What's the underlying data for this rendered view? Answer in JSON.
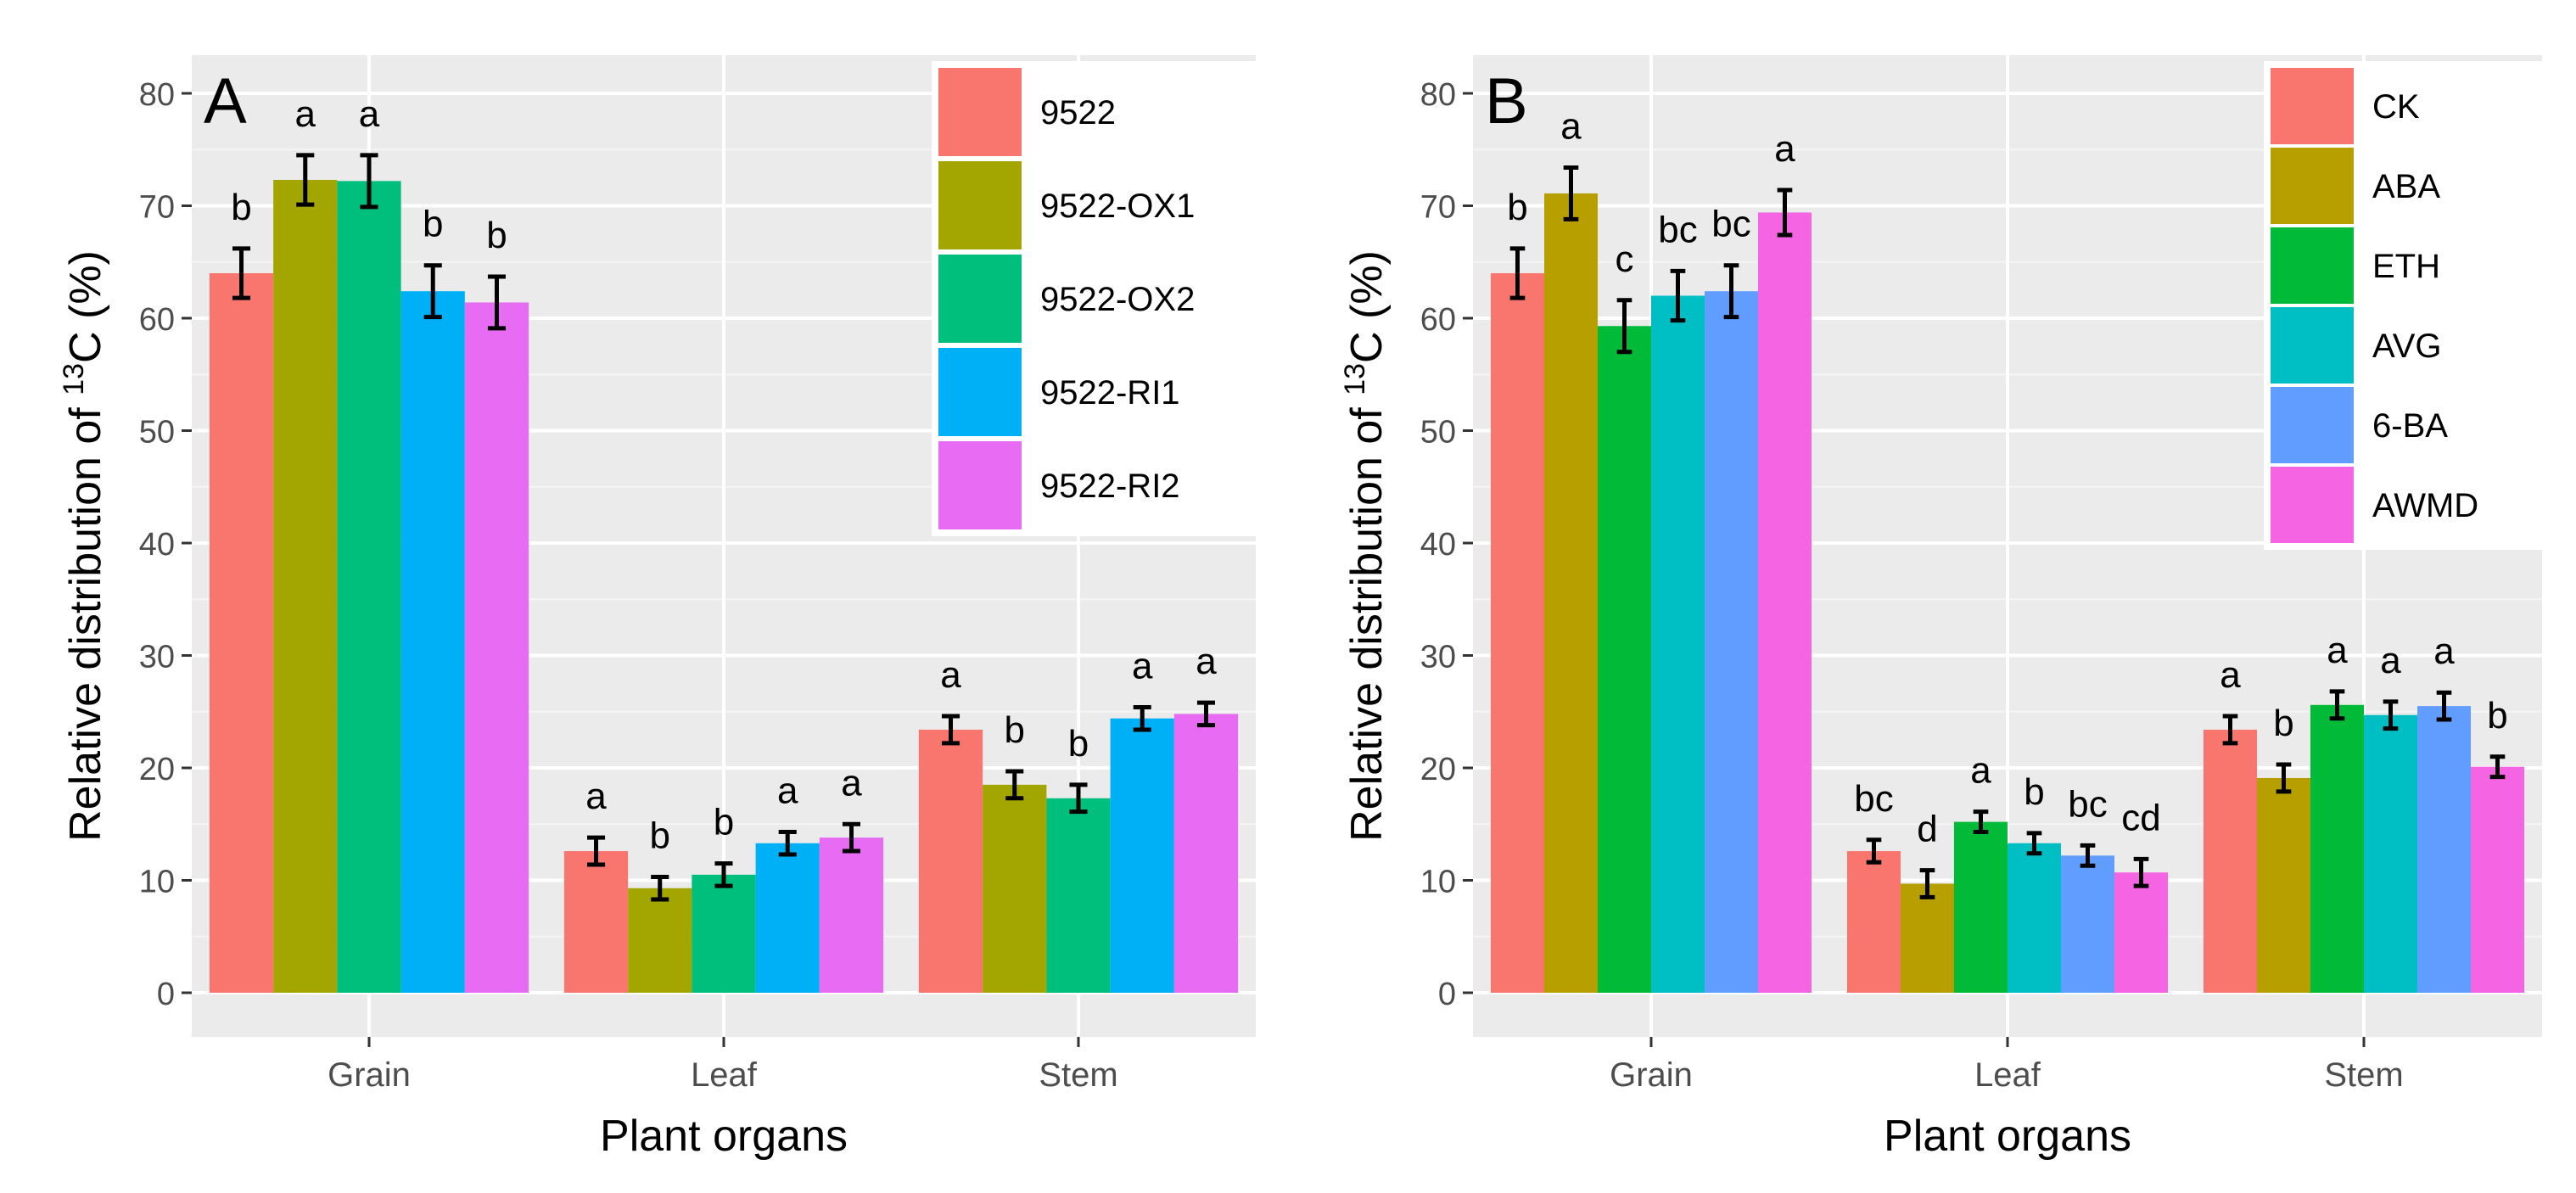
{
  "chart_data": [
    {
      "type": "bar",
      "panel_label": "A",
      "categories": [
        "Grain",
        "Leaf",
        "Stem"
      ],
      "xlabel": "Plant organs",
      "ylabel_prefix": "Relative distribution of ",
      "ylabel_sup": "13",
      "ylabel_suffix": "C (%)",
      "ylim": [
        0,
        80
      ],
      "yticks": [
        0,
        10,
        20,
        30,
        40,
        50,
        60,
        70,
        80
      ],
      "legend_position": "top-right",
      "series": [
        {
          "name": "9522",
          "color": "#F8766D",
          "values": [
            64.0,
            12.6,
            23.4
          ],
          "errors": [
            2.2,
            1.2,
            1.2
          ],
          "letters": [
            "b",
            "a",
            "a"
          ]
        },
        {
          "name": "9522-OX1",
          "color": "#A3A500",
          "values": [
            72.3,
            9.3,
            18.5
          ],
          "errors": [
            2.2,
            1.0,
            1.2
          ],
          "letters": [
            "a",
            "b",
            "b"
          ]
        },
        {
          "name": "9522-OX2",
          "color": "#00BF7D",
          "values": [
            72.2,
            10.5,
            17.3
          ],
          "errors": [
            2.3,
            1.0,
            1.2
          ],
          "letters": [
            "a",
            "b",
            "b"
          ]
        },
        {
          "name": "9522-RI1",
          "color": "#00B0F6",
          "values": [
            62.4,
            13.3,
            24.4
          ],
          "errors": [
            2.3,
            1.0,
            1.0
          ],
          "letters": [
            "b",
            "a",
            "a"
          ]
        },
        {
          "name": "9522-RI2",
          "color": "#E76BF3",
          "values": [
            61.4,
            13.8,
            24.8
          ],
          "errors": [
            2.3,
            1.2,
            1.0
          ],
          "letters": [
            "b",
            "a",
            "a"
          ]
        }
      ]
    },
    {
      "type": "bar",
      "panel_label": "B",
      "categories": [
        "Grain",
        "Leaf",
        "Stem"
      ],
      "xlabel": "Plant organs",
      "ylabel_prefix": "Relative distribution of ",
      "ylabel_sup": "13",
      "ylabel_suffix": "C (%)",
      "ylim": [
        0,
        80
      ],
      "yticks": [
        0,
        10,
        20,
        30,
        40,
        50,
        60,
        70,
        80
      ],
      "legend_position": "top-right",
      "series": [
        {
          "name": "CK",
          "color": "#F8766D",
          "values": [
            64.0,
            12.6,
            23.4
          ],
          "errors": [
            2.2,
            1.0,
            1.2
          ],
          "letters": [
            "b",
            "bc",
            "a"
          ]
        },
        {
          "name": "ABA",
          "color": "#B79F00",
          "values": [
            71.1,
            9.7,
            19.1
          ],
          "errors": [
            2.3,
            1.2,
            1.2
          ],
          "letters": [
            "a",
            "d",
            "b"
          ]
        },
        {
          "name": "ETH",
          "color": "#00BA38",
          "values": [
            59.3,
            15.2,
            25.6
          ],
          "errors": [
            2.3,
            0.9,
            1.2
          ],
          "letters": [
            "c",
            "a",
            "a"
          ]
        },
        {
          "name": "AVG",
          "color": "#00BFC4",
          "values": [
            62.0,
            13.3,
            24.7
          ],
          "errors": [
            2.2,
            0.9,
            1.2
          ],
          "letters": [
            "bc",
            "b",
            "a"
          ]
        },
        {
          "name": "6-BA",
          "color": "#619CFF",
          "values": [
            62.4,
            12.2,
            25.5
          ],
          "errors": [
            2.3,
            0.9,
            1.2
          ],
          "letters": [
            "bc",
            "bc",
            "a"
          ]
        },
        {
          "name": "AWMD",
          "color": "#F564E3",
          "values": [
            69.4,
            10.7,
            20.1
          ],
          "errors": [
            2.0,
            1.2,
            0.9
          ],
          "letters": [
            "a",
            "cd",
            "b"
          ]
        }
      ]
    }
  ]
}
